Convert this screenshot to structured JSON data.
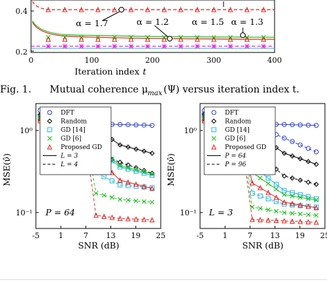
{
  "figure1": {
    "y_ticks": [
      "0.4",
      "0.2"
    ],
    "x_ticks": [
      "0",
      "100",
      "200",
      "300",
      "400"
    ],
    "xlabel": "Iteration index",
    "xlabel_var": "t",
    "alpha_labels": [
      "α = 1.7",
      "α = 1.2",
      "α = 1.5",
      "α = 1.3"
    ],
    "caption_prefix": "Fig. 1.",
    "caption_text": "Mutual coherence μ",
    "caption_sub": "max",
    "caption_rest": "(Ψ) versus iteration index t."
  },
  "figure2": {
    "left_panel": {
      "y_ticks": [
        "10⁰",
        "10⁻¹"
      ],
      "x_ticks": [
        "-5",
        "1",
        "7",
        "13",
        "19",
        "25"
      ],
      "ylabel": "MSE(ν̂)",
      "xlabel": "SNR (dB)",
      "param_label": "P = 64",
      "legend": [
        "DFT",
        "Random",
        "GD [14]",
        "GD [6]",
        "Proposed GD",
        "L = 3",
        "L = 4"
      ]
    },
    "right_panel": {
      "y_ticks": [
        "10⁰",
        "10⁻¹"
      ],
      "x_ticks": [
        "-5",
        "1",
        "7",
        "13",
        "19",
        "25"
      ],
      "ylabel": "MSE(ν̂)",
      "xlabel": "SNR (dB)",
      "param_label": "L = 3",
      "legend": [
        "DFT",
        "Random",
        "GD [14]",
        "GD [6]",
        "Proposed GD",
        "P = 64",
        "P = 96"
      ]
    }
  },
  "colors": {
    "dft": "#2b3fd6",
    "random": "#000000",
    "gd14": "#1fb5e8",
    "gd6": "#19c219",
    "proposed": "#e8231e",
    "magenta": "#e81ee0"
  }
}
